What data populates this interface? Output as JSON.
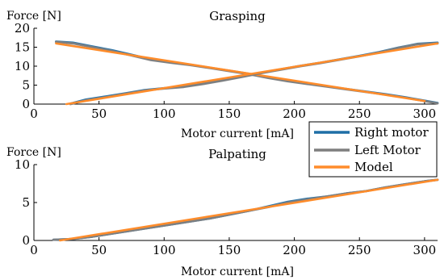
{
  "colors": {
    "right_motor": "#1f6fa6",
    "left_motor": "#7f7f7f",
    "model": "#ff8c2b"
  },
  "legend": {
    "right_motor": "Right motor",
    "left_motor": "Left Motor",
    "model": "Model"
  },
  "chart_data": [
    {
      "type": "line",
      "title": "Grasping",
      "ylabel": "Force [N]",
      "xlabel": "Motor current [mA]",
      "xlim": [
        0,
        310
      ],
      "ylim": [
        0,
        20
      ],
      "xticks": [
        0,
        50,
        100,
        150,
        200,
        250,
        300
      ],
      "yticks": [
        0,
        5,
        10,
        15,
        20
      ],
      "series": [
        {
          "name": "Right motor",
          "x": [
            17,
            30,
            45,
            60,
            75,
            90,
            105,
            120,
            135,
            150,
            165,
            180,
            195,
            210,
            225,
            240,
            255,
            270,
            285,
            300,
            310
          ],
          "y": [
            16.5,
            16.2,
            15.2,
            14.2,
            13.0,
            11.8,
            11.0,
            10.4,
            9.6,
            8.8,
            8.0,
            7.0,
            6.1,
            5.4,
            4.7,
            4.0,
            3.3,
            2.6,
            1.8,
            0.9,
            0.3
          ]
        },
        {
          "name": "Left Motor",
          "x": [
            17,
            30,
            45,
            60,
            75,
            90,
            105,
            120,
            135,
            150,
            165,
            180,
            195,
            210,
            225,
            240,
            255,
            270,
            285,
            300,
            310
          ],
          "y": [
            16.4,
            16.0,
            15.0,
            14.0,
            12.8,
            11.6,
            10.9,
            10.3,
            9.5,
            8.7,
            7.9,
            6.9,
            6.0,
            5.3,
            4.6,
            3.9,
            3.2,
            2.5,
            1.7,
            0.8,
            0.2
          ]
        },
        {
          "name": "Model",
          "x": [
            17,
            300
          ],
          "y": [
            16.0,
            0.8
          ]
        },
        {
          "name": "Right motor",
          "x": [
            28,
            40,
            55,
            70,
            85,
            100,
            115,
            130,
            145,
            160,
            175,
            190,
            205,
            220,
            235,
            250,
            265,
            280,
            295,
            310
          ],
          "y": [
            0.1,
            1.2,
            2.0,
            2.8,
            3.7,
            4.2,
            4.6,
            5.4,
            6.3,
            7.3,
            8.3,
            9.2,
            10.1,
            10.9,
            11.8,
            12.7,
            13.7,
            14.9,
            15.9,
            16.2
          ]
        },
        {
          "name": "Left Motor",
          "x": [
            28,
            40,
            55,
            70,
            85,
            100,
            115,
            130,
            145,
            160,
            175,
            190,
            205,
            220,
            235,
            250,
            265,
            280,
            295,
            310
          ],
          "y": [
            0.0,
            1.0,
            1.8,
            2.7,
            3.6,
            4.1,
            4.5,
            5.3,
            6.2,
            7.2,
            8.2,
            9.1,
            10.0,
            10.8,
            11.7,
            12.6,
            13.6,
            14.8,
            15.8,
            16.0
          ]
        },
        {
          "name": "Model",
          "x": [
            25,
            310
          ],
          "y": [
            0.0,
            16.0
          ]
        }
      ]
    },
    {
      "type": "line",
      "title": "Palpating",
      "ylabel": "Force [N]",
      "xlabel": "Motor current [mA]",
      "xlim": [
        0,
        310
      ],
      "ylim": [
        0,
        10
      ],
      "xticks": [
        0,
        50,
        100,
        150,
        200,
        250,
        300
      ],
      "yticks": [
        0,
        5,
        10
      ],
      "series": [
        {
          "name": "Right motor",
          "x": [
            15,
            30,
            45,
            60,
            75,
            90,
            105,
            120,
            135,
            150,
            165,
            180,
            195,
            210,
            225,
            240,
            255,
            270,
            285,
            300,
            310
          ],
          "y": [
            0.1,
            0.2,
            0.5,
            0.9,
            1.3,
            1.7,
            2.1,
            2.5,
            2.9,
            3.4,
            3.9,
            4.5,
            5.1,
            5.5,
            5.8,
            6.2,
            6.5,
            7.0,
            7.4,
            7.8,
            8.0
          ]
        },
        {
          "name": "Left Motor",
          "x": [
            15,
            30,
            45,
            60,
            75,
            90,
            105,
            120,
            135,
            150,
            165,
            180,
            195,
            210,
            225,
            240,
            255,
            270,
            285,
            300,
            310
          ],
          "y": [
            0.1,
            0.2,
            0.5,
            0.9,
            1.3,
            1.7,
            2.1,
            2.5,
            2.9,
            3.4,
            3.9,
            4.4,
            5.0,
            5.4,
            5.8,
            6.2,
            6.5,
            7.0,
            7.4,
            7.8,
            8.0
          ]
        },
        {
          "name": "Model",
          "x": [
            20,
            310
          ],
          "y": [
            0.0,
            8.0
          ]
        }
      ]
    }
  ]
}
